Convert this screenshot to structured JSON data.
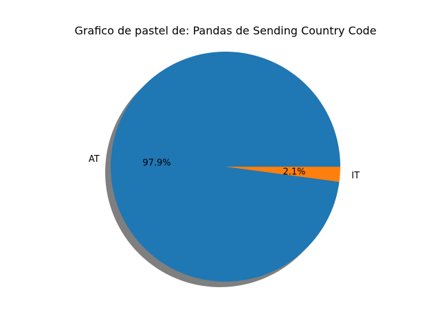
{
  "chart_data": {
    "type": "pie",
    "title": "Grafico de pastel de: Pandas de Sending Country Code",
    "labels": [
      "AT",
      "IT"
    ],
    "values": [
      97.9,
      2.1
    ],
    "value_labels": [
      "97.9%",
      "2.1%"
    ],
    "colors": [
      "#1f77b4",
      "#ff7f0e"
    ],
    "start_angle": 0,
    "counterclockwise": true,
    "shadow": true,
    "legend": "none"
  }
}
